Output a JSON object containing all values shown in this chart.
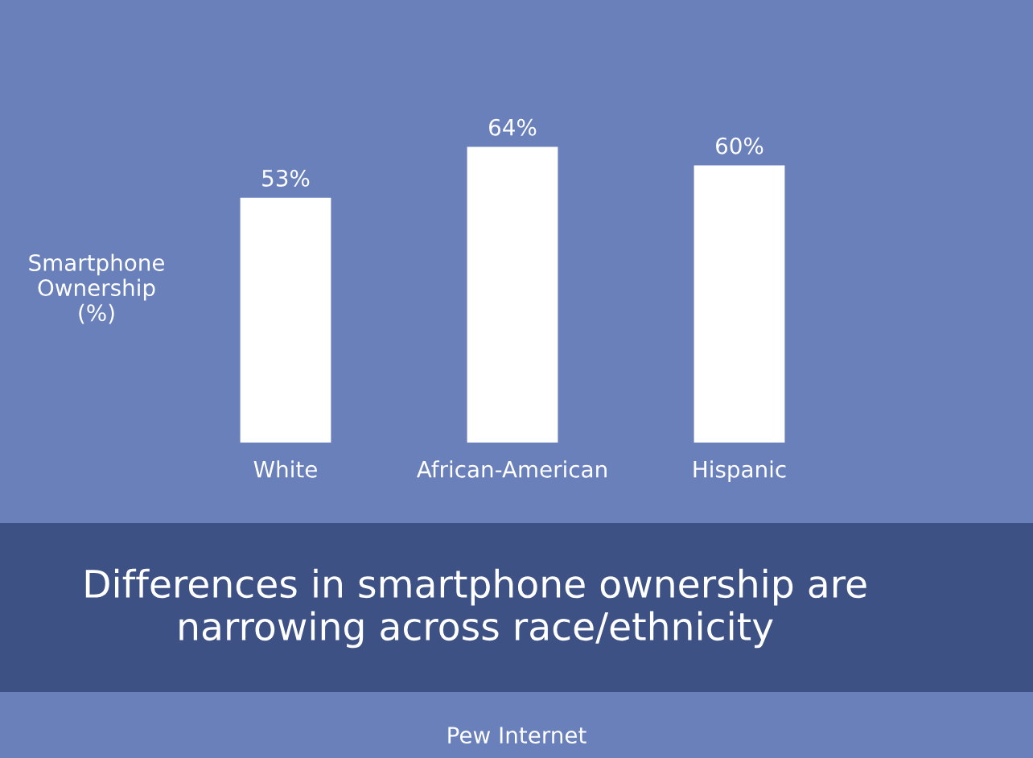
{
  "chart_data": {
    "type": "bar",
    "title": "Differences in smartphone ownership are narrowing across race/ethnicity",
    "ylabel": "Smartphone\nOwnership\n(%)",
    "categories": [
      "White",
      "African-American",
      "Hispanic"
    ],
    "values": [
      53,
      64,
      60
    ],
    "color": "#ffffff",
    "value_labels": [
      "53%",
      "64%",
      "60%"
    ],
    "tick_labels": "x",
    "grid": false,
    "legend": false,
    "annotations": [
      "Pew Internet"
    ]
  }
}
